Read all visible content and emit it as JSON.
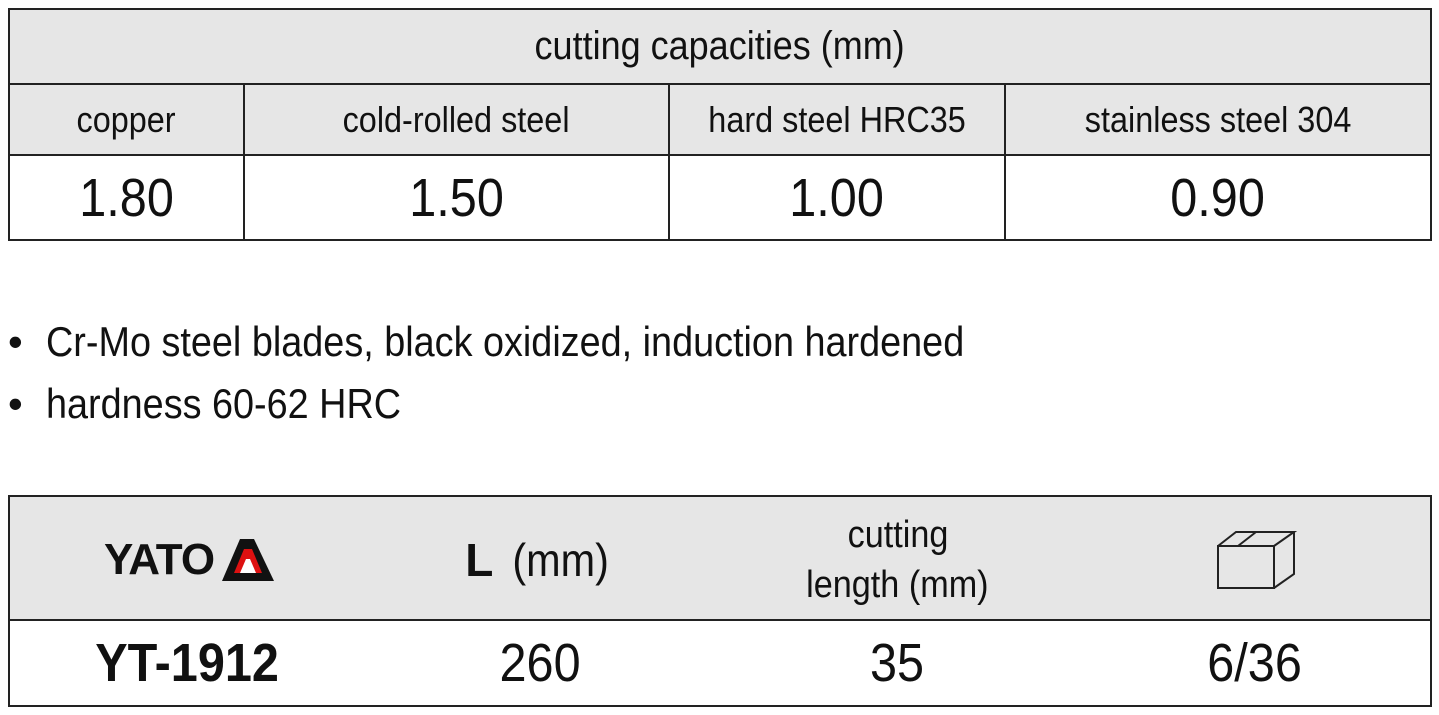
{
  "capacities": {
    "title": "cutting capacities (mm)",
    "headers": [
      "copper",
      "cold-rolled steel",
      "hard steel HRC35",
      "stainless steel 304"
    ],
    "values": [
      "1.80",
      "1.50",
      "1.00",
      "0.90"
    ]
  },
  "features": [
    "Cr-Mo steel blades, black oxidized, induction hardened",
    "hardness 60-62 HRC"
  ],
  "product": {
    "brand": "YATO",
    "length_symbol": "L",
    "length_unit": "(mm)",
    "cutting_length": [
      "cutting",
      "length (mm)"
    ],
    "row": [
      "YT-1912",
      "260",
      "35",
      "6/36"
    ]
  }
}
